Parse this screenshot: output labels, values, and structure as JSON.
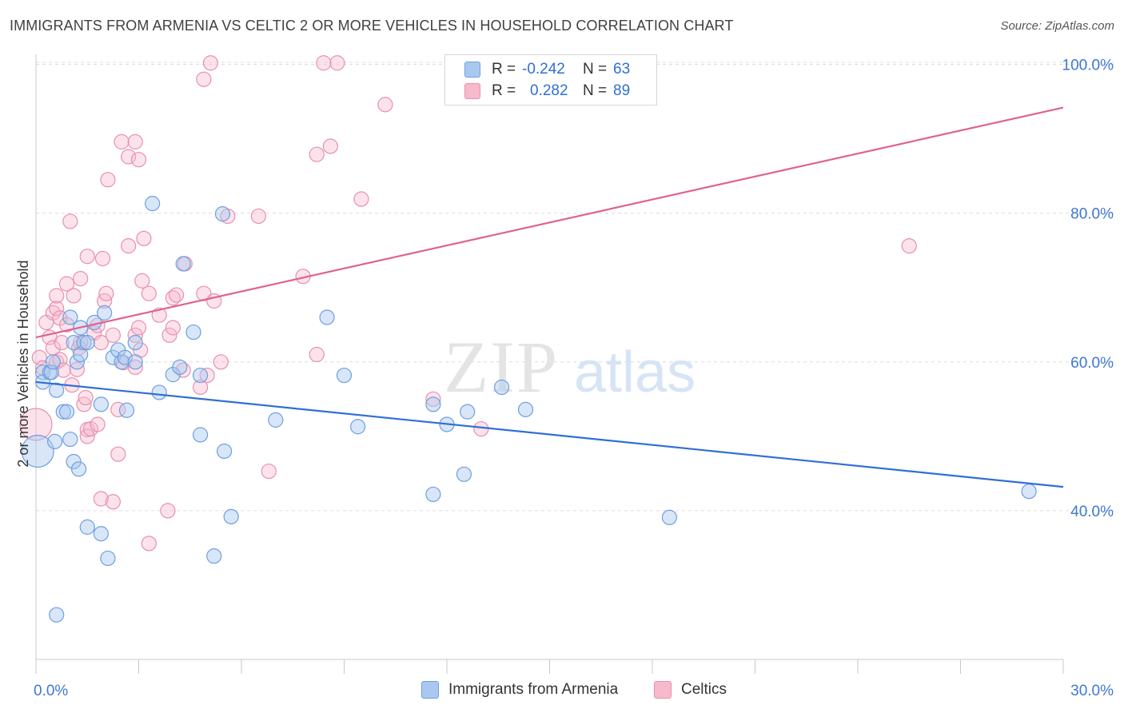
{
  "header": {
    "title": "IMMIGRANTS FROM ARMENIA VS CELTIC 2 OR MORE VEHICLES IN HOUSEHOLD CORRELATION CHART",
    "source": "Source: ZipAtlas.com"
  },
  "watermark": {
    "zip": "ZIP",
    "atlas": "atlas"
  },
  "legend": {
    "rows": [
      {
        "r_label": "R =",
        "r_value": "-0.242",
        "n_label": "N =",
        "n_value": "63",
        "color": "#a9c8f0",
        "border": "#6d9fe0"
      },
      {
        "r_label": "R =",
        "r_value": "0.282",
        "n_label": "N =",
        "n_value": "89",
        "color": "#f7b9cc",
        "border": "#e890ab"
      }
    ]
  },
  "bottom_legend": {
    "armenia": "Immigrants from Armenia",
    "celtic": "Celtics"
  },
  "chart_data": {
    "type": "scatter",
    "title": "IMMIGRANTS FROM ARMENIA VS CELTIC 2 OR MORE VEHICLES IN HOUSEHOLD CORRELATION CHART",
    "xlabel": "",
    "ylabel": "2 or more Vehicles in Household",
    "xlim": [
      0,
      30
    ],
    "ylim": [
      20,
      102
    ],
    "x_tick_labels": [
      "0.0%",
      "30.0%"
    ],
    "y_ticks": [
      40,
      60,
      80,
      100
    ],
    "y_tick_labels": [
      "40.0%",
      "60.0%",
      "80.0%",
      "100.0%"
    ],
    "grid": true,
    "legend_position": "top-center",
    "colors": {
      "armenia": "#2f6fd6",
      "celtic": "#e0628e"
    },
    "series": [
      {
        "name": "Immigrants from Armenia",
        "color": "#2f6fd6",
        "trend": {
          "x": [
            0,
            30
          ],
          "y": [
            57.3,
            43.2
          ]
        },
        "points": [
          [
            0.05,
            48.0
          ],
          [
            0.2,
            58.6
          ],
          [
            0.2,
            57.3
          ],
          [
            0.4,
            58.6
          ],
          [
            0.45,
            58.6
          ],
          [
            0.5,
            60.0
          ],
          [
            0.55,
            49.3
          ],
          [
            0.6,
            56.2
          ],
          [
            0.6,
            26.0
          ],
          [
            0.8,
            53.3
          ],
          [
            0.9,
            53.3
          ],
          [
            1.0,
            49.6
          ],
          [
            1.0,
            66.0
          ],
          [
            1.1,
            62.6
          ],
          [
            1.1,
            46.6
          ],
          [
            1.2,
            60.0
          ],
          [
            1.25,
            45.6
          ],
          [
            1.3,
            61.0
          ],
          [
            1.3,
            64.6
          ],
          [
            1.4,
            62.6
          ],
          [
            1.5,
            37.8
          ],
          [
            1.5,
            62.6
          ],
          [
            1.7,
            65.3
          ],
          [
            1.9,
            54.3
          ],
          [
            1.9,
            36.9
          ],
          [
            2.0,
            66.6
          ],
          [
            2.1,
            33.6
          ],
          [
            2.25,
            60.6
          ],
          [
            2.4,
            61.6
          ],
          [
            2.5,
            60.0
          ],
          [
            2.6,
            60.6
          ],
          [
            2.65,
            53.5
          ],
          [
            2.9,
            60.0
          ],
          [
            2.9,
            62.6
          ],
          [
            3.4,
            81.3
          ],
          [
            3.6,
            55.9
          ],
          [
            4.0,
            58.3
          ],
          [
            4.2,
            59.3
          ],
          [
            4.3,
            73.2
          ],
          [
            4.6,
            64.0
          ],
          [
            4.8,
            58.2
          ],
          [
            4.8,
            50.2
          ],
          [
            5.2,
            33.9
          ],
          [
            5.45,
            79.9
          ],
          [
            5.5,
            48.0
          ],
          [
            5.7,
            39.2
          ],
          [
            7.0,
            52.2
          ],
          [
            8.5,
            66.0
          ],
          [
            9.0,
            58.2
          ],
          [
            9.4,
            51.3
          ],
          [
            11.6,
            54.3
          ],
          [
            11.6,
            42.2
          ],
          [
            12.0,
            51.6
          ],
          [
            12.5,
            44.9
          ],
          [
            12.6,
            53.3
          ],
          [
            13.6,
            56.6
          ],
          [
            14.3,
            53.6
          ],
          [
            18.5,
            39.1
          ],
          [
            29.0,
            42.6
          ]
        ]
      },
      {
        "name": "Celtics",
        "color": "#e0628e",
        "trend": {
          "x": [
            0,
            30
          ],
          "y": [
            63.3,
            94.2
          ]
        },
        "points": [
          [
            0.0,
            51.6
          ],
          [
            0.1,
            60.6
          ],
          [
            0.2,
            59.2
          ],
          [
            0.3,
            65.3
          ],
          [
            0.4,
            63.3
          ],
          [
            0.5,
            61.9
          ],
          [
            0.5,
            66.6
          ],
          [
            0.6,
            60.0
          ],
          [
            0.6,
            67.2
          ],
          [
            0.6,
            68.9
          ],
          [
            0.7,
            65.9
          ],
          [
            0.7,
            60.3
          ],
          [
            0.75,
            62.6
          ],
          [
            0.8,
            58.9
          ],
          [
            0.9,
            70.5
          ],
          [
            0.9,
            65.0
          ],
          [
            1.0,
            78.9
          ],
          [
            1.05,
            56.9
          ],
          [
            1.1,
            68.9
          ],
          [
            1.2,
            59.0
          ],
          [
            1.25,
            61.9
          ],
          [
            1.3,
            62.6
          ],
          [
            1.3,
            71.2
          ],
          [
            1.4,
            54.3
          ],
          [
            1.45,
            55.2
          ],
          [
            1.5,
            50.9
          ],
          [
            1.5,
            74.2
          ],
          [
            1.5,
            50.0
          ],
          [
            1.6,
            51.0
          ],
          [
            1.7,
            63.9
          ],
          [
            1.8,
            64.9
          ],
          [
            1.8,
            51.6
          ],
          [
            1.9,
            62.6
          ],
          [
            1.9,
            41.6
          ],
          [
            1.95,
            73.9
          ],
          [
            2.0,
            68.2
          ],
          [
            2.05,
            69.2
          ],
          [
            2.1,
            84.5
          ],
          [
            2.25,
            63.6
          ],
          [
            2.25,
            41.2
          ],
          [
            2.4,
            53.6
          ],
          [
            2.4,
            47.6
          ],
          [
            2.5,
            89.6
          ],
          [
            2.55,
            59.9
          ],
          [
            2.7,
            75.6
          ],
          [
            2.7,
            87.6
          ],
          [
            2.9,
            89.6
          ],
          [
            2.9,
            63.6
          ],
          [
            2.9,
            59.3
          ],
          [
            3.0,
            64.6
          ],
          [
            3.0,
            87.2
          ],
          [
            3.05,
            61.6
          ],
          [
            3.1,
            70.9
          ],
          [
            3.15,
            76.6
          ],
          [
            3.3,
            69.2
          ],
          [
            3.3,
            35.6
          ],
          [
            3.6,
            66.3
          ],
          [
            3.85,
            40.0
          ],
          [
            3.9,
            63.6
          ],
          [
            4.0,
            68.6
          ],
          [
            4.0,
            64.6
          ],
          [
            4.1,
            69.0
          ],
          [
            4.3,
            58.9
          ],
          [
            4.35,
            73.2
          ],
          [
            4.8,
            56.6
          ],
          [
            4.9,
            98.0
          ],
          [
            4.9,
            69.2
          ],
          [
            5.0,
            58.2
          ],
          [
            5.1,
            100.2
          ],
          [
            5.2,
            68.2
          ],
          [
            5.4,
            60.0
          ],
          [
            5.6,
            79.6
          ],
          [
            6.5,
            79.6
          ],
          [
            6.8,
            45.3
          ],
          [
            7.8,
            71.5
          ],
          [
            8.2,
            61.0
          ],
          [
            8.2,
            87.9
          ],
          [
            8.4,
            100.2
          ],
          [
            8.6,
            89.0
          ],
          [
            8.8,
            100.2
          ],
          [
            9.5,
            81.9
          ],
          [
            10.2,
            94.6
          ],
          [
            11.6,
            55.0
          ],
          [
            13.0,
            51.0
          ],
          [
            25.5,
            75.6
          ]
        ]
      }
    ]
  }
}
